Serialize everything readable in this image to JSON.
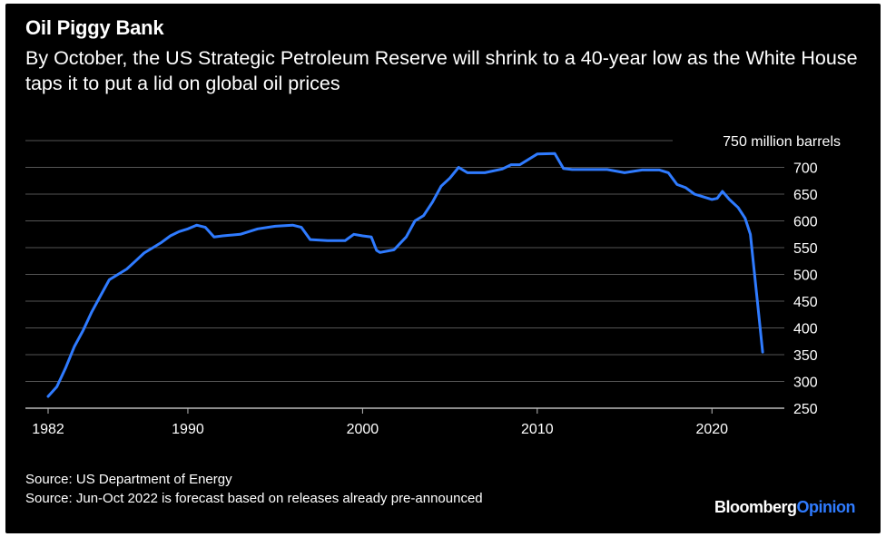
{
  "header": {
    "title": "Oil Piggy Bank",
    "subtitle": "By October, the US Strategic Petroleum Reserve will shrink to a 40-year low as the White House taps it to put a lid on global oil prices"
  },
  "footer": {
    "source1": "Source: US Department of Energy",
    "source2": "Source: Jun-Oct 2022 is forecast based on releases already pre-announced",
    "brand_a": "Bloomberg",
    "brand_b": "Opinion"
  },
  "colors": {
    "line": "#2f7bff",
    "grid": "#555555",
    "background": "#000000",
    "brand_accent": "#2f7bff"
  },
  "chart_data": {
    "type": "line",
    "ylabel": "750 million barrels",
    "ylim": [
      250,
      750
    ],
    "yticks": [
      250,
      300,
      350,
      400,
      450,
      500,
      550,
      600,
      650,
      700,
      750
    ],
    "ytick_labels": [
      "250",
      "300",
      "350",
      "400",
      "450",
      "500",
      "550",
      "600",
      "650",
      "700",
      "750 million barrels"
    ],
    "xlim": [
      1982,
      2023
    ],
    "xticks": [
      1982,
      1990,
      2000,
      2010,
      2020
    ],
    "xtick_labels": [
      "1982",
      "1990",
      "2000",
      "2010",
      "2020"
    ],
    "grid": true,
    "series": [
      {
        "x": [
          1982.0,
          1982.5,
          1983.0,
          1983.5,
          1984.0,
          1984.5,
          1985.0,
          1985.5,
          1986.0,
          1986.5,
          1987.0,
          1987.5,
          1988.0,
          1988.5,
          1989.0,
          1989.5,
          1990.0,
          1990.5,
          1991.0,
          1991.5,
          1992.0,
          1993.0,
          1994.0,
          1995.0,
          1996.0,
          1996.5,
          1997.0,
          1998.0,
          1999.0,
          1999.5,
          2000.0,
          2000.5,
          2000.8,
          2001.0,
          2001.8,
          2002.5,
          2003.0,
          2003.5,
          2004.0,
          2004.5,
          2005.0,
          2005.5,
          2006.0,
          2007.0,
          2008.0,
          2008.5,
          2009.0,
          2010.0,
          2011.0,
          2011.5,
          2012.0,
          2013.0,
          2014.0,
          2015.0,
          2016.0,
          2017.0,
          2017.5,
          2018.0,
          2018.5,
          2019.0,
          2019.5,
          2020.0,
          2020.3,
          2020.6,
          2021.0,
          2021.5,
          2021.9,
          2022.2,
          2022.6,
          2022.9
        ],
        "values": [
          272,
          290,
          325,
          365,
          395,
          430,
          460,
          490,
          500,
          510,
          525,
          540,
          550,
          560,
          572,
          580,
          585,
          592,
          588,
          570,
          572,
          575,
          585,
          590,
          592,
          588,
          565,
          563,
          563,
          575,
          572,
          570,
          545,
          541,
          546,
          570,
          600,
          610,
          635,
          665,
          680,
          700,
          690,
          690,
          697,
          705,
          705,
          725,
          726,
          698,
          696,
          696,
          696,
          690,
          695,
          695,
          690,
          668,
          662,
          650,
          645,
          640,
          642,
          655,
          640,
          625,
          605,
          575,
          450,
          355
        ]
      }
    ]
  }
}
